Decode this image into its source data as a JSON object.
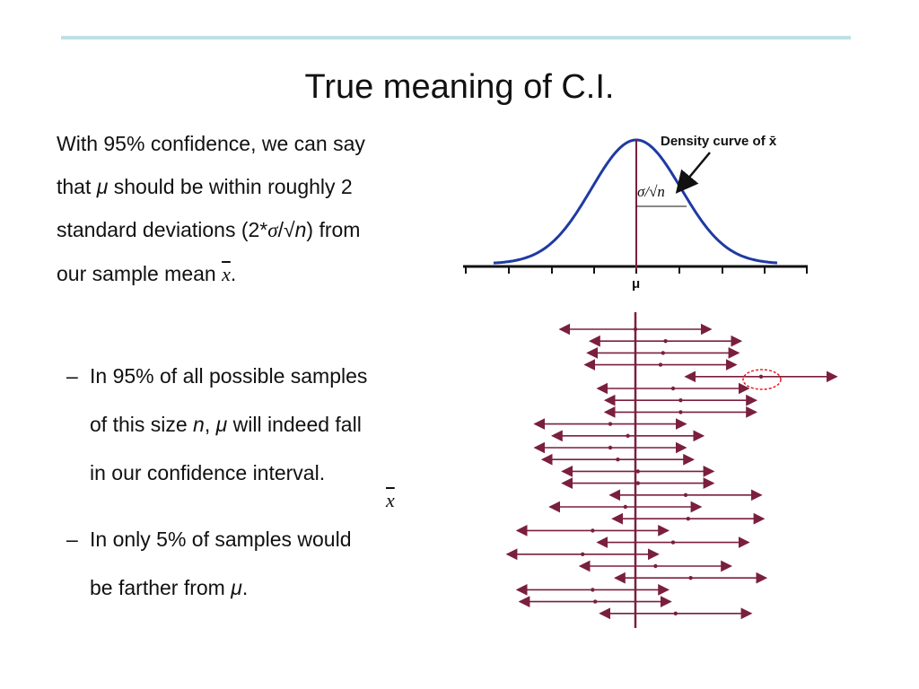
{
  "slide": {
    "title": "True meaning of C.I.",
    "para": {
      "l1": "With 95% confidence, we can say",
      "l2a": "that ",
      "l2mu": "μ",
      "l2b": " should be within roughly 2",
      "l3a": "standard deviations (2*",
      "l3sigma": "σ",
      "l3b": "/√",
      "l3n": "n",
      "l3c": ") from",
      "l4a": "our sample mean ",
      "l4x": "x",
      "l4b": "."
    },
    "bullet1": {
      "dash": "–",
      "l1": "In 95% of all possible samples",
      "l2a": "of this size ",
      "l2n": "n",
      "l2b": ", ",
      "l2mu": "μ",
      "l2c": " will indeed fall",
      "l3": "in our confidence interval."
    },
    "stray_xbar": "x",
    "bullet2": {
      "dash": "–",
      "l1": "In only 5% of samples would",
      "l2a": "be farther from ",
      "l2mu": "μ",
      "l2b": "."
    }
  },
  "figure": {
    "density_label": "Density curve of x̄",
    "sigma_label": "σ/√n",
    "mu_label": "μ",
    "curve_color": "#1f3aa3",
    "interval_color": "#7a1f3d",
    "highlight_color": "#e02020"
  },
  "chart_data": {
    "type": "interval",
    "mu": 0,
    "half_width": 3,
    "sample_means": [
      0.0,
      1.2,
      1.1,
      1.0,
      5.0,
      1.5,
      1.8,
      1.8,
      -1.0,
      -0.3,
      -1.0,
      -0.7,
      0.1,
      0.1,
      2.0,
      -0.4,
      2.1,
      -1.7,
      1.5,
      -2.1,
      0.8,
      2.2,
      -1.7,
      -1.6,
      1.6
    ]
  }
}
